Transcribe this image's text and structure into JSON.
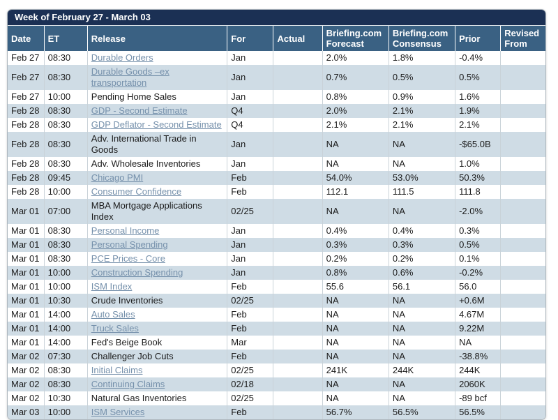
{
  "title": "Week of February 27 - March 03",
  "colors": {
    "title_bar_bg": "#1b3054",
    "header_bg": "#3a6183",
    "row_alt_bg": "#cfdce5",
    "link_color": "#7590ab",
    "outer_border": "#aeb7be",
    "cell_border": "#c9d2d8",
    "body_text": "#1b1b1b"
  },
  "columns": [
    {
      "key": "date",
      "label": "Date"
    },
    {
      "key": "et",
      "label": "ET"
    },
    {
      "key": "release",
      "label": "Release"
    },
    {
      "key": "for",
      "label": "For"
    },
    {
      "key": "actual",
      "label": "Actual"
    },
    {
      "key": "forecast",
      "label": "Briefing.com Forecast"
    },
    {
      "key": "consensus",
      "label": "Briefing.com Consensus"
    },
    {
      "key": "prior",
      "label": "Prior"
    },
    {
      "key": "revised",
      "label": "Revised From"
    }
  ],
  "rows": [
    {
      "date": "Feb 27",
      "et": "08:30",
      "release": "Durable Orders",
      "link": true,
      "for": "Jan",
      "actual": "",
      "forecast": "2.0%",
      "consensus": "1.8%",
      "prior": "-0.4%",
      "revised": ""
    },
    {
      "date": "Feb 27",
      "et": "08:30",
      "release": "Durable Goods –ex transportation",
      "link": true,
      "for": "Jan",
      "actual": "",
      "forecast": "0.7%",
      "consensus": "0.5%",
      "prior": "0.5%",
      "revised": ""
    },
    {
      "date": "Feb 27",
      "et": "10:00",
      "release": "Pending Home Sales",
      "link": false,
      "for": "Jan",
      "actual": "",
      "forecast": "0.8%",
      "consensus": "0.9%",
      "prior": "1.6%",
      "revised": ""
    },
    {
      "date": "Feb 28",
      "et": "08:30",
      "release": "GDP - Second Estimate",
      "link": true,
      "for": "Q4",
      "actual": "",
      "forecast": "2.0%",
      "consensus": "2.1%",
      "prior": "1.9%",
      "revised": ""
    },
    {
      "date": "Feb 28",
      "et": "08:30",
      "release": "GDP Deflator - Second Estimate",
      "link": true,
      "for": "Q4",
      "actual": "",
      "forecast": "2.1%",
      "consensus": "2.1%",
      "prior": "2.1%",
      "revised": ""
    },
    {
      "date": "Feb 28",
      "et": "08:30",
      "release": "Adv. International Trade in Goods",
      "link": false,
      "for": "Jan",
      "actual": "",
      "forecast": "NA",
      "consensus": "NA",
      "prior": "-$65.0B",
      "revised": ""
    },
    {
      "date": "Feb 28",
      "et": "08:30",
      "release": "Adv. Wholesale Inventories",
      "link": false,
      "for": "Jan",
      "actual": "",
      "forecast": "NA",
      "consensus": "NA",
      "prior": "1.0%",
      "revised": ""
    },
    {
      "date": "Feb 28",
      "et": "09:45",
      "release": "Chicago PMI",
      "link": true,
      "for": "Feb",
      "actual": "",
      "forecast": "54.0%",
      "consensus": "53.0%",
      "prior": "50.3%",
      "revised": ""
    },
    {
      "date": "Feb 28",
      "et": "10:00",
      "release": "Consumer Confidence",
      "link": true,
      "for": "Feb",
      "actual": "",
      "forecast": "112.1",
      "consensus": "111.5",
      "prior": "111.8",
      "revised": ""
    },
    {
      "date": "Mar 01",
      "et": "07:00",
      "release": "MBA Mortgage Applications Index",
      "link": false,
      "for": "02/25",
      "actual": "",
      "forecast": "NA",
      "consensus": "NA",
      "prior": "-2.0%",
      "revised": ""
    },
    {
      "date": "Mar 01",
      "et": "08:30",
      "release": "Personal Income",
      "link": true,
      "for": "Jan",
      "actual": "",
      "forecast": "0.4%",
      "consensus": "0.4%",
      "prior": "0.3%",
      "revised": ""
    },
    {
      "date": "Mar 01",
      "et": "08:30",
      "release": "Personal Spending",
      "link": true,
      "for": "Jan",
      "actual": "",
      "forecast": "0.3%",
      "consensus": "0.3%",
      "prior": "0.5%",
      "revised": ""
    },
    {
      "date": "Mar 01",
      "et": "08:30",
      "release": "PCE Prices - Core",
      "link": true,
      "for": "Jan",
      "actual": "",
      "forecast": "0.2%",
      "consensus": "0.2%",
      "prior": "0.1%",
      "revised": ""
    },
    {
      "date": "Mar 01",
      "et": "10:00",
      "release": "Construction Spending",
      "link": true,
      "for": "Jan",
      "actual": "",
      "forecast": "0.8%",
      "consensus": "0.6%",
      "prior": "-0.2%",
      "revised": ""
    },
    {
      "date": "Mar 01",
      "et": "10:00",
      "release": "ISM Index",
      "link": true,
      "for": "Feb",
      "actual": "",
      "forecast": "55.6",
      "consensus": "56.1",
      "prior": "56.0",
      "revised": ""
    },
    {
      "date": "Mar 01",
      "et": "10:30",
      "release": "Crude Inventories",
      "link": false,
      "for": "02/25",
      "actual": "",
      "forecast": "NA",
      "consensus": "NA",
      "prior": "+0.6M",
      "revised": ""
    },
    {
      "date": "Mar 01",
      "et": "14:00",
      "release": "Auto Sales",
      "link": true,
      "for": "Feb",
      "actual": "",
      "forecast": "NA",
      "consensus": "NA",
      "prior": "4.67M",
      "revised": ""
    },
    {
      "date": "Mar 01",
      "et": "14:00",
      "release": "Truck Sales",
      "link": true,
      "for": "Feb",
      "actual": "",
      "forecast": "NA",
      "consensus": "NA",
      "prior": "9.22M",
      "revised": ""
    },
    {
      "date": "Mar 01",
      "et": "14:00",
      "release": "Fed's Beige Book",
      "link": false,
      "for": "Mar",
      "actual": "",
      "forecast": "NA",
      "consensus": "NA",
      "prior": "NA",
      "revised": ""
    },
    {
      "date": "Mar 02",
      "et": "07:30",
      "release": "Challenger Job Cuts",
      "link": false,
      "for": "Feb",
      "actual": "",
      "forecast": "NA",
      "consensus": "NA",
      "prior": "-38.8%",
      "revised": ""
    },
    {
      "date": "Mar 02",
      "et": "08:30",
      "release": "Initial Claims",
      "link": true,
      "for": "02/25",
      "actual": "",
      "forecast": "241K",
      "consensus": "244K",
      "prior": "244K",
      "revised": ""
    },
    {
      "date": "Mar 02",
      "et": "08:30",
      "release": "Continuing Claims",
      "link": true,
      "for": "02/18",
      "actual": "",
      "forecast": "NA",
      "consensus": "NA",
      "prior": "2060K",
      "revised": ""
    },
    {
      "date": "Mar 02",
      "et": "10:30",
      "release": "Natural Gas Inventories",
      "link": false,
      "for": "02/25",
      "actual": "",
      "forecast": "NA",
      "consensus": "NA",
      "prior": "-89 bcf",
      "revised": ""
    },
    {
      "date": "Mar 03",
      "et": "10:00",
      "release": "ISM Services",
      "link": true,
      "for": "Feb",
      "actual": "",
      "forecast": "56.7%",
      "consensus": "56.5%",
      "prior": "56.5%",
      "revised": ""
    }
  ]
}
